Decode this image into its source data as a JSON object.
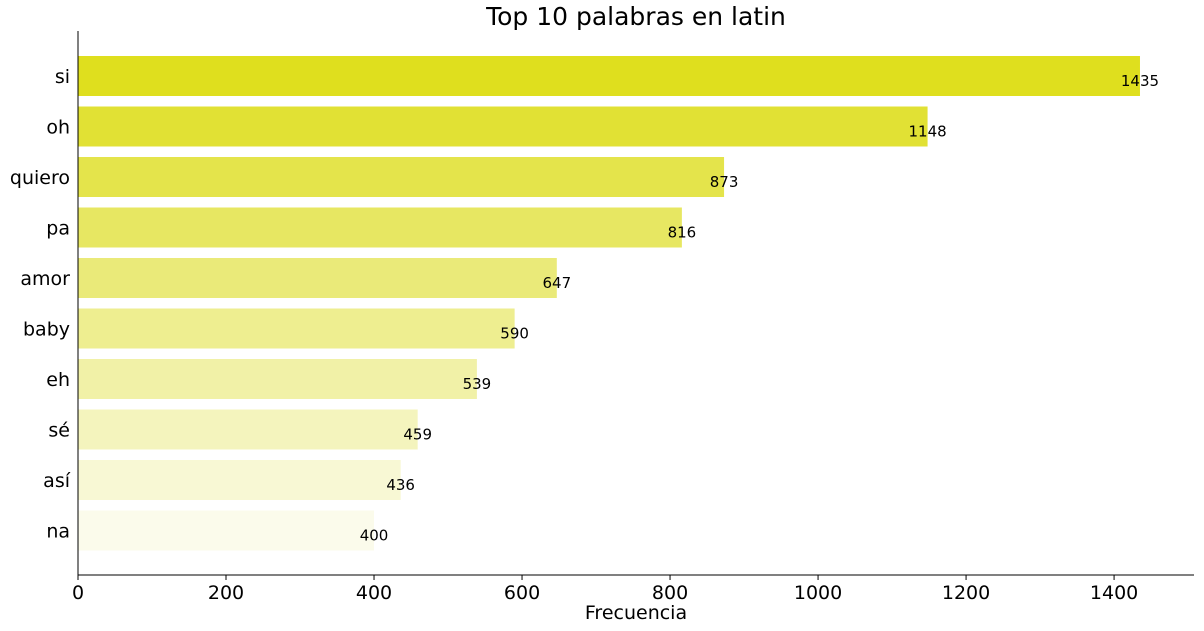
{
  "chart_data": {
    "type": "bar",
    "orientation": "horizontal",
    "title": "Top 10 palabras en latin",
    "xlabel": "Frecuencia",
    "ylabel": "",
    "categories": [
      "si",
      "oh",
      "quiero",
      "pa",
      "amor",
      "baby",
      "eh",
      "sé",
      "así",
      "na"
    ],
    "values": [
      1435,
      1148,
      873,
      816,
      647,
      590,
      539,
      459,
      436,
      400
    ],
    "data_labels": [
      "1435",
      "1148",
      "873",
      "816",
      "647",
      "590",
      "539",
      "459",
      "436",
      "400"
    ],
    "colors": [
      "#dfdf1e",
      "#e1e134",
      "#e4e44b",
      "#e7e762",
      "#eaea79",
      "#eeee90",
      "#f1f1a7",
      "#f4f4bd",
      "#f8f8d4",
      "#fbfbeb"
    ],
    "xlim": [
      0,
      1508
    ],
    "xticks": [
      0,
      200,
      400,
      600,
      800,
      1000,
      1200,
      1400
    ],
    "xtick_labels": [
      "0",
      "200",
      "400",
      "600",
      "800",
      "1000",
      "1200",
      "1400"
    ],
    "grid": false,
    "legend": "none"
  }
}
